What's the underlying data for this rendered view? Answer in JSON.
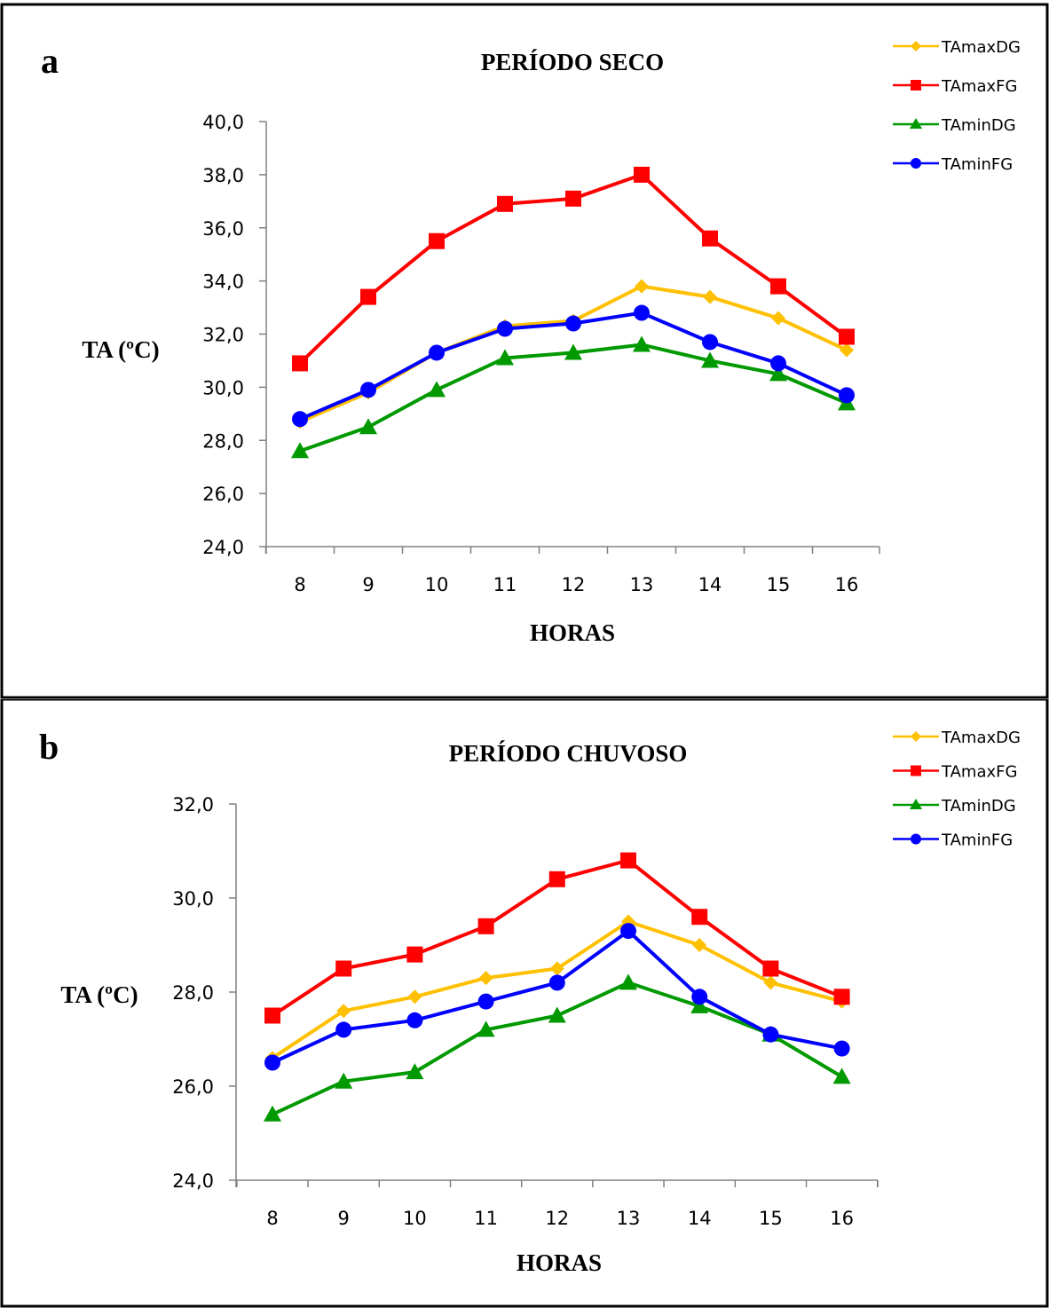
{
  "chart_data": [
    {
      "type": "line",
      "panel_letter": "a",
      "title": "PERÍODO SECO",
      "xlabel": "HORAS",
      "ylabel": "TA (ºC)",
      "categories": [
        "8",
        "9",
        "10",
        "11",
        "12",
        "13",
        "14",
        "15",
        "16"
      ],
      "yticks": [
        "24,0",
        "26,0",
        "28,0",
        "30,0",
        "32,0",
        "34,0",
        "36,0",
        "38,0",
        "40,0"
      ],
      "ylim": [
        24,
        40
      ],
      "legend_position": "top-right",
      "series": [
        {
          "name": "TAmaxDG",
          "color": "#FFC000",
          "marker": "diamond",
          "values": [
            28.7,
            29.8,
            31.3,
            32.3,
            32.5,
            33.8,
            33.4,
            32.6,
            31.4
          ]
        },
        {
          "name": "TAmaxFG",
          "color": "#FF0000",
          "marker": "square",
          "values": [
            30.9,
            33.4,
            35.5,
            36.9,
            37.1,
            38.0,
            35.6,
            33.8,
            31.9
          ]
        },
        {
          "name": "TAminDG",
          "color": "#009900",
          "marker": "triangle",
          "values": [
            27.6,
            28.5,
            29.9,
            31.1,
            31.3,
            31.6,
            31.0,
            30.5,
            29.4
          ]
        },
        {
          "name": "TAminFG",
          "color": "#0000FF",
          "marker": "circle",
          "values": [
            28.8,
            29.9,
            31.3,
            32.2,
            32.4,
            32.8,
            31.7,
            30.9,
            29.7
          ]
        }
      ]
    },
    {
      "type": "line",
      "panel_letter": "b",
      "title": "PERÍODO CHUVOSO",
      "xlabel": "HORAS",
      "ylabel": "TA (ºC)",
      "categories": [
        "8",
        "9",
        "10",
        "11",
        "12",
        "13",
        "14",
        "15",
        "16"
      ],
      "yticks": [
        "24,0",
        "26,0",
        "28,0",
        "30,0",
        "32,0"
      ],
      "ylim": [
        24,
        32
      ],
      "legend_position": "top-right",
      "series": [
        {
          "name": "TAmaxDG",
          "color": "#FFC000",
          "marker": "diamond",
          "values": [
            26.6,
            27.6,
            27.9,
            28.3,
            28.5,
            29.5,
            29.0,
            28.2,
            27.8
          ]
        },
        {
          "name": "TAmaxFG",
          "color": "#FF0000",
          "marker": "square",
          "values": [
            27.5,
            28.5,
            28.8,
            29.4,
            30.4,
            30.8,
            29.6,
            28.5,
            27.9
          ]
        },
        {
          "name": "TAminDG",
          "color": "#009900",
          "marker": "triangle",
          "values": [
            25.4,
            26.1,
            26.3,
            27.2,
            27.5,
            28.2,
            27.7,
            27.1,
            26.2
          ]
        },
        {
          "name": "TAminFG",
          "color": "#0000FF",
          "marker": "circle",
          "values": [
            26.5,
            27.2,
            27.4,
            27.8,
            28.2,
            29.3,
            27.9,
            27.1,
            26.8
          ]
        }
      ]
    }
  ]
}
